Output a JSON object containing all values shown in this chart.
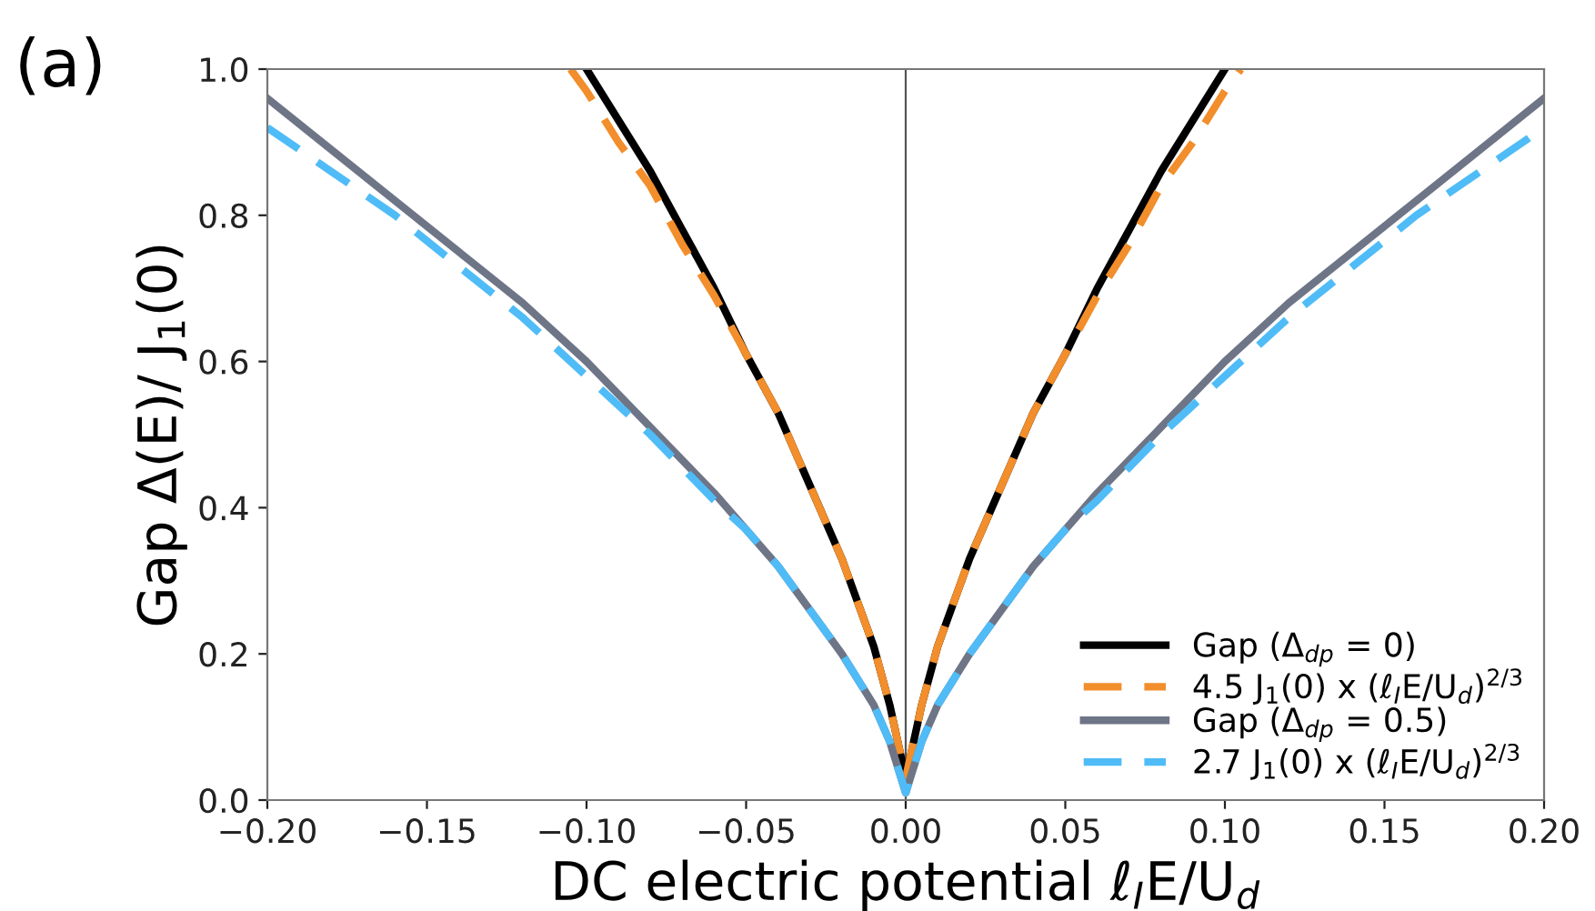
{
  "chart_data": {
    "type": "line",
    "xlabel": "DC electric potential ℓ$_{I}$E/U$_{d}$",
    "ylabel": "Gap Δ(E)/ J$_{1}$(0)",
    "annotations": [
      "(a)"
    ],
    "series": [
      {
        "name": "Gap (Δ$_{dp}$ = 0)",
        "color": "#000000",
        "line_style": "solid",
        "x": [
          -0.1,
          -0.09,
          -0.08,
          -0.07,
          -0.06,
          -0.05,
          -0.04,
          -0.03,
          -0.02,
          -0.01,
          -0.005,
          0,
          0.005,
          0.01,
          0.02,
          0.03,
          0.04,
          0.05,
          0.06,
          0.07,
          0.08,
          0.09,
          0.1
        ],
        "values": [
          1.0,
          0.93,
          0.86,
          0.78,
          0.7,
          0.61,
          0.53,
          0.43,
          0.33,
          0.21,
          0.13,
          0.03,
          0.13,
          0.21,
          0.33,
          0.43,
          0.53,
          0.61,
          0.7,
          0.78,
          0.86,
          0.93,
          1.0
        ]
      },
      {
        "name": "4.5 J$_{1}$(0) x (ℓ$_{I}$E/U$_{d}$)$^{2/3}$",
        "color": "#f28e2b",
        "line_style": "dashed",
        "x": [
          -0.105,
          -0.1,
          -0.09,
          -0.08,
          -0.07,
          -0.06,
          -0.05,
          -0.04,
          -0.03,
          -0.02,
          -0.01,
          -0.005,
          0,
          0.005,
          0.01,
          0.02,
          0.03,
          0.04,
          0.05,
          0.06,
          0.07,
          0.08,
          0.09,
          0.1,
          0.105
        ],
        "values": [
          1.0,
          0.97,
          0.9,
          0.84,
          0.76,
          0.69,
          0.61,
          0.53,
          0.43,
          0.33,
          0.21,
          0.13,
          0.03,
          0.13,
          0.21,
          0.33,
          0.43,
          0.53,
          0.61,
          0.69,
          0.76,
          0.84,
          0.9,
          0.97,
          1.0
        ]
      },
      {
        "name": "Gap (Δ$_{dp}$ = 0.5)",
        "color": "#6e7587",
        "line_style": "solid",
        "x": [
          -0.2,
          -0.18,
          -0.16,
          -0.14,
          -0.12,
          -0.1,
          -0.08,
          -0.06,
          -0.05,
          -0.04,
          -0.03,
          -0.02,
          -0.01,
          -0.005,
          0,
          0.005,
          0.01,
          0.02,
          0.03,
          0.04,
          0.05,
          0.06,
          0.08,
          0.1,
          0.12,
          0.14,
          0.16,
          0.18,
          0.2
        ],
        "values": [
          0.96,
          0.89,
          0.82,
          0.75,
          0.68,
          0.6,
          0.51,
          0.42,
          0.37,
          0.32,
          0.26,
          0.2,
          0.13,
          0.08,
          0.01,
          0.08,
          0.13,
          0.2,
          0.26,
          0.32,
          0.37,
          0.42,
          0.51,
          0.6,
          0.68,
          0.75,
          0.82,
          0.89,
          0.96
        ]
      },
      {
        "name": "2.7 J$_{1}$(0) x (ℓ$_{I}$E/U$_{d}$)$^{2/3}$",
        "color": "#4fbcf7",
        "line_style": "dashed",
        "x": [
          -0.2,
          -0.18,
          -0.16,
          -0.14,
          -0.12,
          -0.1,
          -0.08,
          -0.06,
          -0.05,
          -0.04,
          -0.03,
          -0.02,
          -0.01,
          -0.005,
          0,
          0.005,
          0.01,
          0.02,
          0.03,
          0.04,
          0.05,
          0.06,
          0.08,
          0.1,
          0.12,
          0.14,
          0.16,
          0.18,
          0.2
        ],
        "values": [
          0.92,
          0.86,
          0.8,
          0.73,
          0.66,
          0.58,
          0.5,
          0.41,
          0.37,
          0.32,
          0.26,
          0.2,
          0.13,
          0.08,
          0.01,
          0.08,
          0.13,
          0.2,
          0.26,
          0.32,
          0.37,
          0.41,
          0.5,
          0.58,
          0.66,
          0.73,
          0.8,
          0.86,
          0.92
        ]
      }
    ],
    "xlim": [
      -0.2,
      0.2
    ],
    "ylim": [
      0,
      1
    ],
    "xticks": [
      {
        "value": -0.2,
        "label": "−0.20"
      },
      {
        "value": -0.15,
        "label": "−0.15"
      },
      {
        "value": -0.1,
        "label": "−0.10"
      },
      {
        "value": -0.05,
        "label": "−0.05"
      },
      {
        "value": 0,
        "label": "0.00"
      },
      {
        "value": 0.05,
        "label": "0.05"
      },
      {
        "value": 0.1,
        "label": "0.10"
      },
      {
        "value": 0.15,
        "label": "0.15"
      },
      {
        "value": 0.2,
        "label": "0.20"
      }
    ],
    "yticks": [
      {
        "value": 0,
        "label": "0.0"
      },
      0.2,
      0.4,
      0.6,
      0.8,
      {
        "value": 1,
        "label": "1.0"
      }
    ],
    "ref_lines": [
      {
        "axis": "x",
        "value": 0,
        "color": "#555555"
      }
    ],
    "grid": false,
    "legend": "bottom right"
  }
}
